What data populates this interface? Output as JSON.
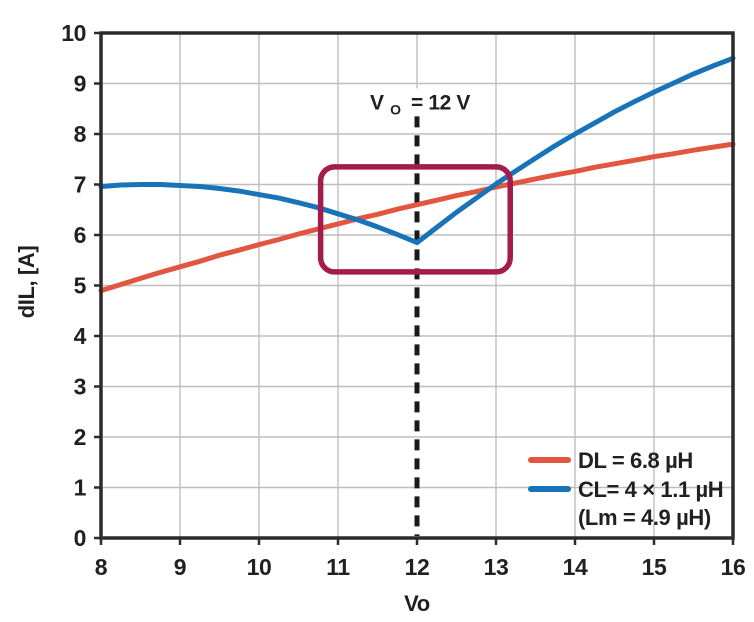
{
  "chart_data": {
    "type": "line",
    "title": "",
    "xlabel": "Vo",
    "ylabel": "dIL, [A]",
    "xlim": [
      8,
      16
    ],
    "ylim": [
      0,
      10
    ],
    "x_ticks": [
      8,
      9,
      10,
      11,
      12,
      13,
      14,
      15,
      16
    ],
    "y_ticks": [
      0,
      1,
      2,
      3,
      4,
      5,
      6,
      7,
      8,
      9,
      10
    ],
    "grid": true,
    "legend_position": "bottom-right",
    "x": [
      8,
      8.25,
      8.5,
      8.75,
      9,
      9.25,
      9.5,
      9.75,
      10,
      10.25,
      10.5,
      10.75,
      11,
      11.25,
      11.5,
      11.75,
      12,
      12.25,
      12.5,
      12.75,
      13,
      13.25,
      13.5,
      13.75,
      14,
      14.25,
      14.5,
      14.75,
      15,
      15.25,
      15.5,
      15.75,
      16
    ],
    "series": [
      {
        "name": "DL = 6.8 µH",
        "color": "#e25540",
        "values": [
          4.9,
          5.02,
          5.14,
          5.26,
          5.37,
          5.48,
          5.6,
          5.7,
          5.81,
          5.91,
          6.02,
          6.12,
          6.22,
          6.32,
          6.41,
          6.51,
          6.6,
          6.69,
          6.78,
          6.86,
          6.95,
          7.03,
          7.11,
          7.19,
          7.26,
          7.34,
          7.41,
          7.48,
          7.55,
          7.61,
          7.68,
          7.74,
          7.8
        ]
      },
      {
        "name": "CL= 4 × 1.1 µH (Lm = 4.9 µH)",
        "color": "#1873b8",
        "values": [
          6.96,
          6.99,
          7.0,
          7.0,
          6.98,
          6.96,
          6.92,
          6.87,
          6.8,
          6.73,
          6.64,
          6.54,
          6.42,
          6.3,
          6.16,
          6.01,
          5.85,
          6.15,
          6.45,
          6.73,
          7.01,
          7.27,
          7.52,
          7.77,
          8.0,
          8.22,
          8.44,
          8.64,
          8.83,
          9.01,
          9.19,
          9.35,
          9.5
        ]
      }
    ],
    "annotations": {
      "vline": {
        "x": 12,
        "prefix": "V",
        "sub": "O",
        "suffix": "= 12 V",
        "style": "dashed",
        "color": "#1a1a1a",
        "y_top": 8.35
      },
      "highlight_box": {
        "x0": 10.78,
        "x1": 13.18,
        "y0": 5.27,
        "y1": 7.35,
        "color": "#a21d4c"
      }
    },
    "legend": {
      "dl_label": "DL = 6.8 µH",
      "dl_color": "#e25540",
      "cl_label": "CL= 4 × 1.1 µH",
      "cl_label2": "(Lm = 4.9 µH)",
      "cl_color": "#1873b8"
    }
  },
  "colors": {
    "background": "#ffffff",
    "frame": "#2b2b2b",
    "grid": "#bebebe",
    "text": "#231f20"
  }
}
